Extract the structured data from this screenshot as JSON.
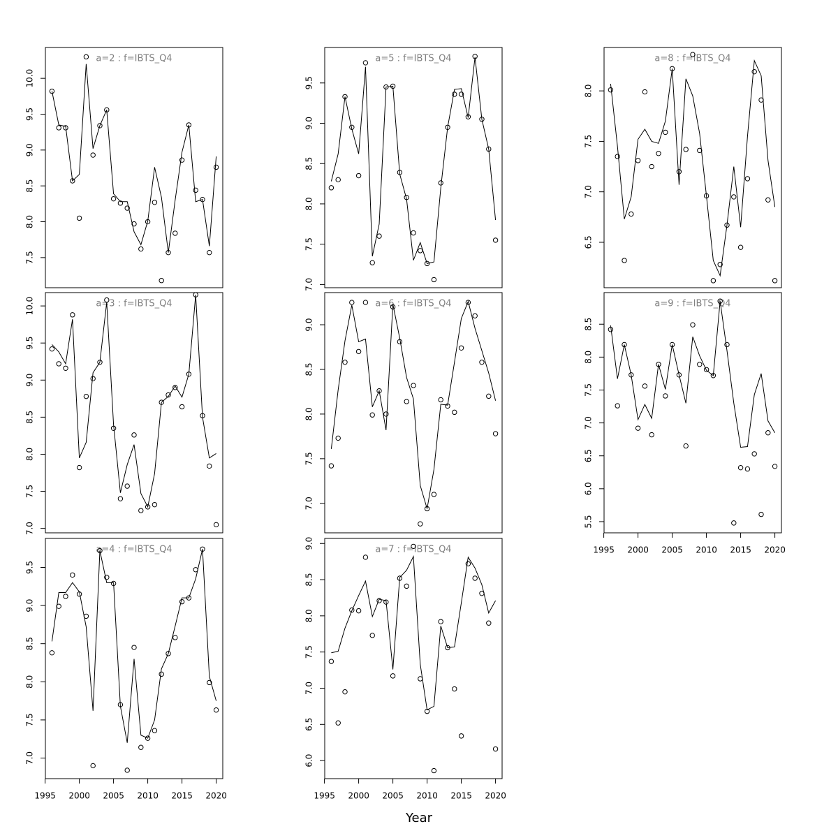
{
  "xlabel": "Year",
  "chart_data": [
    {
      "type": "combo",
      "title": "a=2 : f=IBTS_Q4",
      "x": [
        1996,
        1997,
        1998,
        1999,
        2000,
        2001,
        2002,
        2003,
        2004,
        2005,
        2006,
        2007,
        2008,
        2009,
        2010,
        2011,
        2012,
        2013,
        2014,
        2015,
        2016,
        2017,
        2018,
        2019,
        2020
      ],
      "series": [
        {
          "type": "scatter",
          "color": "#000000",
          "values": [
            9.82,
            9.31,
            9.31,
            8.57,
            8.05,
            10.3,
            8.93,
            9.34,
            9.56,
            8.32,
            8.26,
            8.19,
            7.97,
            7.62,
            8.0,
            8.27,
            7.18,
            7.57,
            7.84,
            8.86,
            9.35,
            8.44,
            8.31,
            7.57,
            8.76
          ]
        },
        {
          "type": "line",
          "color": "#000000",
          "values": [
            9.82,
            9.35,
            9.33,
            8.57,
            8.66,
            10.2,
            9.02,
            9.34,
            9.56,
            8.39,
            8.28,
            8.28,
            7.86,
            7.68,
            8.01,
            8.76,
            8.34,
            7.57,
            8.3,
            8.97,
            9.35,
            8.28,
            8.31,
            7.66,
            8.91
          ]
        }
      ],
      "xlim": [
        1995.04,
        2020.96
      ],
      "ylim": [
        7.08,
        10.43
      ],
      "yticks": [
        7.5,
        {
          "value": 8,
          "label": "8.0"
        },
        8.5,
        {
          "value": 9,
          "label": "9.0"
        },
        9.5,
        {
          "value": 10,
          "label": "10.0"
        }
      ]
    },
    {
      "type": "combo",
      "title": "a=3 : f=IBTS_Q4",
      "x": [
        1996,
        1997,
        1998,
        1999,
        2000,
        2001,
        2002,
        2003,
        2004,
        2005,
        2006,
        2007,
        2008,
        2009,
        2010,
        2011,
        2012,
        2013,
        2014,
        2015,
        2016,
        2017,
        2018,
        2019,
        2020
      ],
      "series": [
        {
          "type": "scatter",
          "color": "#000000",
          "values": [
            9.42,
            9.22,
            9.16,
            9.88,
            7.82,
            8.78,
            9.02,
            9.24,
            10.08,
            8.35,
            7.4,
            7.57,
            8.26,
            7.24,
            7.29,
            7.32,
            8.7,
            8.8,
            8.9,
            8.64,
            9.08,
            10.15,
            8.52,
            7.84,
            7.05
          ]
        },
        {
          "type": "line",
          "color": "#000000",
          "values": [
            9.48,
            9.38,
            9.22,
            9.82,
            7.95,
            8.16,
            9.1,
            9.24,
            10.05,
            8.4,
            7.48,
            7.86,
            8.13,
            7.47,
            7.29,
            7.74,
            8.7,
            8.78,
            8.92,
            8.77,
            9.08,
            10.15,
            8.5,
            7.95,
            8.01
          ]
        }
      ],
      "xlim": [
        1995.04,
        2020.96
      ],
      "ylim": [
        6.94,
        10.18
      ],
      "yticks": [
        {
          "value": 7,
          "label": "7.0"
        },
        7.5,
        {
          "value": 8,
          "label": "8.0"
        },
        8.5,
        {
          "value": 9,
          "label": "9.0"
        },
        9.5,
        {
          "value": 10,
          "label": "10.0"
        }
      ]
    },
    {
      "type": "combo",
      "title": "a=4 : f=IBTS_Q4",
      "x": [
        1996,
        1997,
        1998,
        1999,
        2000,
        2001,
        2002,
        2003,
        2004,
        2005,
        2006,
        2007,
        2008,
        2009,
        2010,
        2011,
        2012,
        2013,
        2014,
        2015,
        2016,
        2017,
        2018,
        2019,
        2020
      ],
      "series": [
        {
          "type": "scatter",
          "color": "#000000",
          "values": [
            8.38,
            8.99,
            9.12,
            9.4,
            9.15,
            8.86,
            6.9,
            9.72,
            9.37,
            9.29,
            7.7,
            6.84,
            8.45,
            7.14,
            7.26,
            7.36,
            8.1,
            8.37,
            8.58,
            9.05,
            9.1,
            9.47,
            9.74,
            7.99,
            7.63
          ]
        },
        {
          "type": "line",
          "color": "#000000",
          "values": [
            8.53,
            9.17,
            9.17,
            9.3,
            9.18,
            8.72,
            7.62,
            9.72,
            9.3,
            9.3,
            7.68,
            7.2,
            8.3,
            7.3,
            7.26,
            7.5,
            8.17,
            8.37,
            8.73,
            9.1,
            9.1,
            9.35,
            9.74,
            8.07,
            7.75
          ]
        }
      ],
      "xlim": [
        1995.04,
        2020.96
      ],
      "ylim": [
        6.73,
        9.88
      ],
      "yticks": [
        {
          "value": 7,
          "label": "7.0"
        },
        7.5,
        {
          "value": 8,
          "label": "8.0"
        },
        8.5,
        {
          "value": 9,
          "label": "9.0"
        },
        9.5
      ],
      "xticks": [
        1995,
        2000,
        2005,
        2010,
        2015,
        2020
      ]
    },
    {
      "type": "combo",
      "title": "a=5 : f=IBTS_Q4",
      "x": [
        1996,
        1997,
        1998,
        1999,
        2000,
        2001,
        2002,
        2003,
        2004,
        2005,
        2006,
        2007,
        2008,
        2009,
        2010,
        2011,
        2012,
        2013,
        2014,
        2015,
        2016,
        2017,
        2018,
        2019,
        2020
      ],
      "series": [
        {
          "type": "scatter",
          "color": "#000000",
          "values": [
            8.2,
            8.3,
            9.33,
            8.95,
            8.35,
            9.75,
            7.27,
            7.6,
            9.45,
            9.46,
            8.39,
            8.08,
            7.64,
            7.42,
            7.26,
            7.06,
            8.26,
            8.95,
            9.36,
            9.36,
            9.08,
            9.83,
            9.05,
            8.68,
            7.55
          ]
        },
        {
          "type": "line",
          "color": "#000000",
          "values": [
            8.28,
            8.62,
            9.33,
            8.93,
            8.62,
            9.7,
            7.35,
            7.75,
            9.45,
            9.46,
            8.37,
            8.06,
            7.3,
            7.52,
            7.26,
            7.28,
            8.2,
            8.95,
            9.42,
            9.43,
            9.07,
            9.82,
            9.05,
            8.68,
            7.8
          ]
        }
      ],
      "xlim": [
        1995.04,
        2020.96
      ],
      "ylim": [
        6.96,
        9.94
      ],
      "yticks": [
        {
          "value": 7,
          "label": "7.0"
        },
        7.5,
        {
          "value": 8,
          "label": "8.0"
        },
        8.5,
        {
          "value": 9,
          "label": "9.0"
        },
        9.5
      ]
    },
    {
      "type": "combo",
      "title": "a=6 : f=IBTS_Q4",
      "x": [
        1996,
        1997,
        1998,
        1999,
        2000,
        2001,
        2002,
        2003,
        2004,
        2005,
        2006,
        2007,
        2008,
        2009,
        2010,
        2011,
        2012,
        2013,
        2014,
        2015,
        2016,
        2017,
        2018,
        2019,
        2020
      ],
      "series": [
        {
          "type": "scatter",
          "color": "#000000",
          "values": [
            7.42,
            7.73,
            8.58,
            9.25,
            8.7,
            9.25,
            7.99,
            8.26,
            8.0,
            9.2,
            8.81,
            8.14,
            8.32,
            6.77,
            6.94,
            7.1,
            8.16,
            8.09,
            8.02,
            8.74,
            9.25,
            9.1,
            8.58,
            8.2,
            7.78
          ]
        },
        {
          "type": "line",
          "color": "#000000",
          "values": [
            7.61,
            8.27,
            8.82,
            9.22,
            8.81,
            8.84,
            8.08,
            8.26,
            7.82,
            9.23,
            8.85,
            8.41,
            8.17,
            7.2,
            6.94,
            7.38,
            8.11,
            8.1,
            8.58,
            9.07,
            9.26,
            8.96,
            8.71,
            8.46,
            8.15
          ]
        }
      ],
      "xlim": [
        1995.04,
        2020.96
      ],
      "ylim": [
        6.67,
        9.36
      ],
      "yticks": [
        {
          "value": 7,
          "label": "7.0"
        },
        7.5,
        {
          "value": 8,
          "label": "8.0"
        },
        8.5,
        {
          "value": 9,
          "label": "9.0"
        }
      ]
    },
    {
      "type": "combo",
      "title": "a=7 : f=IBTS_Q4",
      "x": [
        1996,
        1997,
        1998,
        1999,
        2000,
        2001,
        2002,
        2003,
        2004,
        2005,
        2006,
        2007,
        2008,
        2009,
        2010,
        2011,
        2012,
        2013,
        2014,
        2015,
        2016,
        2017,
        2018,
        2019,
        2020
      ],
      "series": [
        {
          "type": "scatter",
          "color": "#000000",
          "values": [
            7.37,
            6.52,
            6.95,
            8.08,
            8.07,
            8.81,
            7.73,
            8.21,
            8.19,
            7.17,
            8.52,
            8.41,
            8.96,
            7.13,
            6.68,
            5.86,
            7.92,
            7.56,
            6.99,
            6.34,
            8.72,
            8.52,
            8.31,
            7.9,
            6.16
          ]
        },
        {
          "type": "line",
          "color": "#000000",
          "values": [
            7.49,
            7.51,
            7.83,
            8.07,
            8.28,
            8.48,
            7.99,
            8.23,
            8.21,
            7.26,
            8.53,
            8.63,
            8.82,
            7.33,
            6.7,
            6.75,
            7.86,
            7.56,
            7.57,
            8.18,
            8.81,
            8.66,
            8.43,
            8.04,
            8.21
          ]
        }
      ],
      "xlim": [
        1995.04,
        2020.96
      ],
      "ylim": [
        5.75,
        9.07
      ],
      "yticks": [
        {
          "value": 6,
          "label": "6.0"
        },
        6.5,
        {
          "value": 7,
          "label": "7.0"
        },
        7.5,
        {
          "value": 8,
          "label": "8.0"
        },
        8.5,
        {
          "value": 9,
          "label": "9.0"
        }
      ],
      "xticks": [
        1995,
        2000,
        2005,
        2010,
        2015,
        2020
      ]
    },
    {
      "type": "combo",
      "title": "a=8 : f=IBTS_Q4",
      "x": [
        1996,
        1997,
        1998,
        1999,
        2000,
        2001,
        2002,
        2003,
        2004,
        2005,
        2006,
        2007,
        2008,
        2009,
        2010,
        2011,
        2012,
        2013,
        2014,
        2015,
        2016,
        2017,
        2018,
        2019,
        2020
      ],
      "series": [
        {
          "type": "scatter",
          "color": "#000000",
          "values": [
            8.01,
            7.35,
            6.32,
            6.78,
            7.31,
            7.99,
            7.25,
            7.38,
            7.59,
            8.22,
            7.2,
            7.42,
            8.36,
            7.41,
            6.96,
            6.12,
            6.28,
            6.67,
            6.95,
            6.45,
            7.13,
            8.19,
            7.91,
            6.92,
            6.12
          ]
        },
        {
          "type": "line",
          "color": "#000000",
          "values": [
            8.07,
            7.45,
            6.73,
            6.95,
            7.52,
            7.62,
            7.5,
            7.48,
            7.7,
            8.22,
            7.07,
            8.12,
            7.95,
            7.58,
            6.96,
            6.32,
            6.17,
            6.67,
            7.25,
            6.65,
            7.55,
            8.3,
            8.15,
            7.31,
            6.85
          ]
        }
      ],
      "xlim": [
        1995.04,
        2020.96
      ],
      "ylim": [
        6.05,
        8.43
      ],
      "yticks": [
        6.5,
        {
          "value": 7,
          "label": "7.0"
        },
        7.5,
        {
          "value": 8,
          "label": "8.0"
        }
      ]
    },
    {
      "type": "combo",
      "title": "a=9 : f=IBTS_Q4",
      "x": [
        1996,
        1997,
        1998,
        1999,
        2000,
        2001,
        2002,
        2003,
        2004,
        2005,
        2006,
        2007,
        2008,
        2009,
        2010,
        2011,
        2012,
        2013,
        2014,
        2015,
        2016,
        2017,
        2018,
        2019,
        2020
      ],
      "series": [
        {
          "type": "scatter",
          "color": "#000000",
          "values": [
            8.42,
            7.26,
            8.19,
            7.73,
            6.92,
            7.56,
            6.82,
            7.89,
            7.41,
            8.19,
            7.73,
            6.65,
            8.49,
            7.89,
            7.81,
            7.72,
            8.85,
            8.19,
            5.48,
            6.32,
            6.3,
            6.53,
            5.61,
            6.85,
            6.34
          ]
        },
        {
          "type": "line",
          "color": "#000000",
          "values": [
            8.48,
            7.67,
            8.19,
            7.73,
            7.05,
            7.28,
            7.07,
            7.89,
            7.51,
            8.19,
            7.73,
            7.3,
            8.31,
            8.02,
            7.8,
            7.72,
            8.85,
            8.1,
            7.3,
            6.63,
            6.64,
            7.43,
            7.75,
            7.03,
            6.85
          ]
        }
      ],
      "xlim": [
        1995.04,
        2020.96
      ],
      "ylim": [
        5.33,
        8.98
      ],
      "yticks": [
        5.5,
        {
          "value": 6,
          "label": "6.0"
        },
        6.5,
        {
          "value": 7,
          "label": "7.0"
        },
        7.5,
        {
          "value": 8,
          "label": "8.0"
        },
        8.5
      ],
      "xticks": [
        1995,
        2000,
        2005,
        2010,
        2015,
        2020
      ]
    }
  ]
}
